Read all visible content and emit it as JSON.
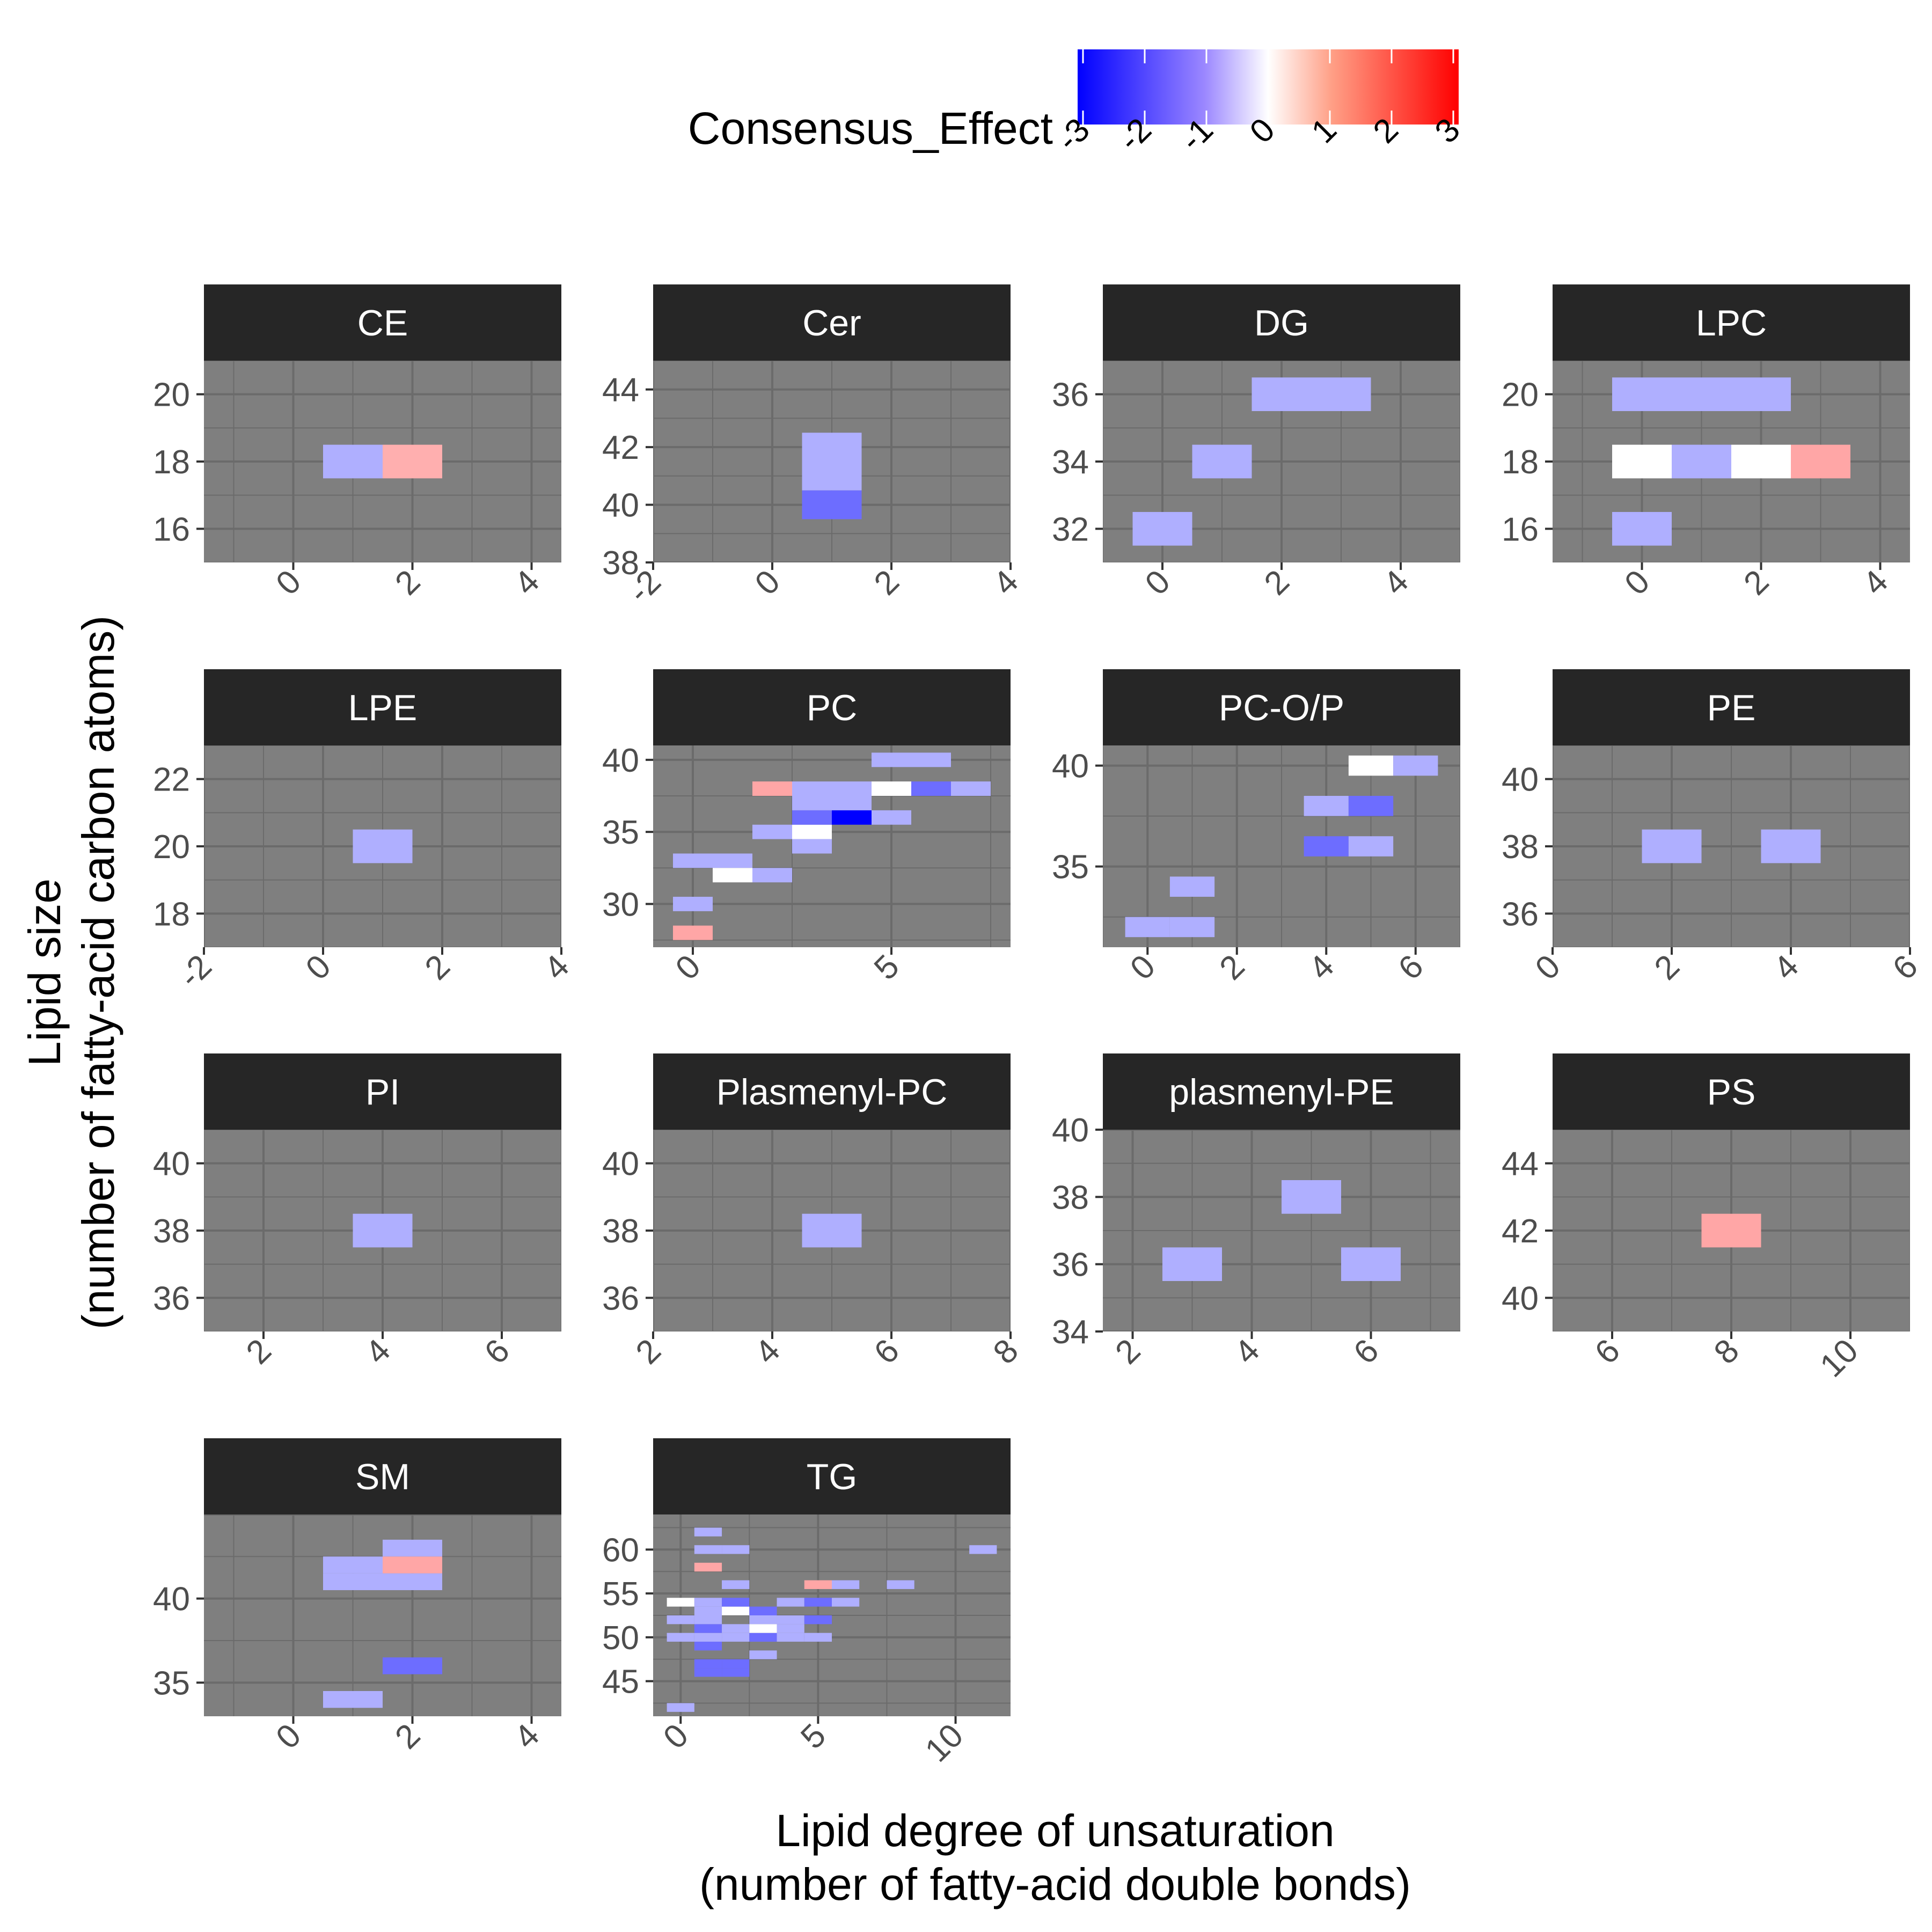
{
  "figure": {
    "xlabel_line1": "Lipid degree of unsaturation",
    "xlabel_line2": "(number of fatty-acid double bonds)",
    "ylabel_line1": "Lipid size",
    "ylabel_line2": "(number of fatty-acid carbon atoms)"
  },
  "legend": {
    "title": "Consensus_Effect",
    "ticks": [
      -3,
      -2,
      -1,
      0,
      1,
      2,
      3
    ],
    "tick_labels": [
      "-3",
      "-2",
      "-1",
      "0",
      "1",
      "2",
      "3"
    ],
    "colors": {
      "low": "#0000ff",
      "mid": "#ffffff",
      "high": "#ff0000"
    },
    "limits": [
      -3,
      3
    ]
  },
  "colors": {
    "panel_bg": "#7f7f7f",
    "strip_bg": "#262626",
    "strip_text": "#ffffff",
    "grid": "#6b6b6b"
  },
  "chart_data": [
    {
      "type": "heatmap",
      "facet": "CE",
      "xlim": [
        -1.5,
        4.5
      ],
      "ylim": [
        15,
        21
      ],
      "xticks": [
        0,
        2,
        4
      ],
      "xtick_labels": [
        "0",
        "2",
        "4"
      ],
      "yticks": [
        16,
        18,
        20
      ],
      "ytick_labels": [
        "16",
        "18",
        "20"
      ],
      "cells": [
        {
          "x": 1,
          "y": 18,
          "v": -0.7
        },
        {
          "x": 2,
          "y": 18,
          "v": 0.7
        }
      ]
    },
    {
      "type": "heatmap",
      "facet": "Cer",
      "xlim": [
        -2,
        4
      ],
      "ylim": [
        38,
        45
      ],
      "xticks": [
        -2,
        0,
        2,
        4
      ],
      "xtick_labels": [
        "-2",
        "0",
        "2",
        "4"
      ],
      "yticks": [
        38,
        40,
        42,
        44
      ],
      "ytick_labels": [
        "38",
        "40",
        "42",
        "44"
      ],
      "cells": [
        {
          "x": 1,
          "y": 40,
          "v": -1.5
        },
        {
          "x": 1,
          "y": 41,
          "v": -0.7
        },
        {
          "x": 1,
          "y": 42,
          "v": -0.7
        }
      ]
    },
    {
      "type": "heatmap",
      "facet": "DG",
      "xlim": [
        -1,
        5
      ],
      "ylim": [
        31,
        37
      ],
      "xticks": [
        0,
        2,
        4
      ],
      "xtick_labels": [
        "0",
        "2",
        "4"
      ],
      "yticks": [
        32,
        34,
        36
      ],
      "ytick_labels": [
        "32",
        "34",
        "36"
      ],
      "cells": [
        {
          "x": 0,
          "y": 32,
          "v": -0.7
        },
        {
          "x": 1,
          "y": 34,
          "v": -0.7
        },
        {
          "x": 2,
          "y": 36,
          "v": -0.7
        },
        {
          "x": 3,
          "y": 36,
          "v": -0.7
        }
      ]
    },
    {
      "type": "heatmap",
      "facet": "LPC",
      "xlim": [
        -1.5,
        4.5
      ],
      "ylim": [
        15,
        21
      ],
      "xticks": [
        0,
        2,
        4
      ],
      "xtick_labels": [
        "0",
        "2",
        "4"
      ],
      "yticks": [
        16,
        18,
        20
      ],
      "ytick_labels": [
        "16",
        "18",
        "20"
      ],
      "cells": [
        {
          "x": 0,
          "y": 16,
          "v": -0.7
        },
        {
          "x": 0,
          "y": 18,
          "v": 0
        },
        {
          "x": 1,
          "y": 18,
          "v": -0.7
        },
        {
          "x": 2,
          "y": 18,
          "v": 0
        },
        {
          "x": 3,
          "y": 18,
          "v": 0.8
        },
        {
          "x": 0,
          "y": 20,
          "v": -0.7
        },
        {
          "x": 1,
          "y": 20,
          "v": -0.7
        },
        {
          "x": 2,
          "y": 20,
          "v": -0.7
        }
      ]
    },
    {
      "type": "heatmap",
      "facet": "LPE",
      "xlim": [
        -2,
        4
      ],
      "ylim": [
        17,
        23
      ],
      "xticks": [
        -2,
        0,
        2,
        4
      ],
      "xtick_labels": [
        "-2",
        "0",
        "2",
        "4"
      ],
      "yticks": [
        18,
        20,
        22
      ],
      "ytick_labels": [
        "18",
        "20",
        "22"
      ],
      "cells": [
        {
          "x": 1,
          "y": 20,
          "v": -0.7
        }
      ]
    },
    {
      "type": "heatmap",
      "facet": "PC",
      "xlim": [
        -1,
        8
      ],
      "ylim": [
        27,
        41
      ],
      "xticks": [
        0,
        5
      ],
      "xtick_labels": [
        "0",
        "5"
      ],
      "yticks": [
        30,
        35,
        40
      ],
      "ytick_labels": [
        "30",
        "35",
        "40"
      ],
      "cells": [
        {
          "x": 0,
          "y": 28,
          "v": 0.8
        },
        {
          "x": 0,
          "y": 30,
          "v": -0.7
        },
        {
          "x": 0,
          "y": 33,
          "v": -0.7
        },
        {
          "x": 1,
          "y": 33,
          "v": -0.7
        },
        {
          "x": 1,
          "y": 32,
          "v": 0
        },
        {
          "x": 2,
          "y": 32,
          "v": -0.7
        },
        {
          "x": 2,
          "y": 35,
          "v": -0.7
        },
        {
          "x": 3,
          "y": 35,
          "v": 0
        },
        {
          "x": 3,
          "y": 34,
          "v": -0.7
        },
        {
          "x": 3,
          "y": 36,
          "v": -1.5
        },
        {
          "x": 4,
          "y": 36,
          "v": -3
        },
        {
          "x": 5,
          "y": 36,
          "v": -0.7
        },
        {
          "x": 2,
          "y": 38,
          "v": 0.8
        },
        {
          "x": 3,
          "y": 38,
          "v": -0.7
        },
        {
          "x": 4,
          "y": 38,
          "v": -0.7
        },
        {
          "x": 5,
          "y": 38,
          "v": 0
        },
        {
          "x": 6,
          "y": 38,
          "v": -1.5
        },
        {
          "x": 7,
          "y": 38,
          "v": -0.7
        },
        {
          "x": 3,
          "y": 37,
          "v": -0.7
        },
        {
          "x": 4,
          "y": 37,
          "v": -0.7
        },
        {
          "x": 5,
          "y": 40,
          "v": -0.7
        },
        {
          "x": 6,
          "y": 40,
          "v": -0.7
        }
      ]
    },
    {
      "type": "heatmap",
      "facet": "PC-O/P",
      "xlim": [
        -1,
        7
      ],
      "ylim": [
        31,
        41
      ],
      "xticks": [
        0,
        2,
        4,
        6
      ],
      "xtick_labels": [
        "0",
        "2",
        "4",
        "6"
      ],
      "yticks": [
        35,
        40
      ],
      "ytick_labels": [
        "35",
        "40"
      ],
      "cells": [
        {
          "x": 0,
          "y": 32,
          "v": -0.7
        },
        {
          "x": 1,
          "y": 32,
          "v": -0.7
        },
        {
          "x": 1,
          "y": 34,
          "v": -0.7
        },
        {
          "x": 4,
          "y": 36,
          "v": -1.5
        },
        {
          "x": 5,
          "y": 36,
          "v": -0.7
        },
        {
          "x": 4,
          "y": 38,
          "v": -0.7
        },
        {
          "x": 5,
          "y": 38,
          "v": -1.5
        },
        {
          "x": 5,
          "y": 40,
          "v": 0
        },
        {
          "x": 6,
          "y": 40,
          "v": -0.7
        }
      ]
    },
    {
      "type": "heatmap",
      "facet": "PE",
      "xlim": [
        0,
        6
      ],
      "ylim": [
        35,
        41
      ],
      "xticks": [
        0,
        2,
        4,
        6
      ],
      "xtick_labels": [
        "0",
        "2",
        "4",
        "6"
      ],
      "yticks": [
        36,
        38,
        40
      ],
      "ytick_labels": [
        "36",
        "38",
        "40"
      ],
      "cells": [
        {
          "x": 2,
          "y": 38,
          "v": -0.7
        },
        {
          "x": 4,
          "y": 38,
          "v": -0.7
        }
      ]
    },
    {
      "type": "heatmap",
      "facet": "PI",
      "xlim": [
        1,
        7
      ],
      "ylim": [
        35,
        41
      ],
      "xticks": [
        2,
        4,
        6
      ],
      "xtick_labels": [
        "2",
        "4",
        "6"
      ],
      "yticks": [
        36,
        38,
        40
      ],
      "ytick_labels": [
        "36",
        "38",
        "40"
      ],
      "cells": [
        {
          "x": 4,
          "y": 38,
          "v": -0.7
        }
      ]
    },
    {
      "type": "heatmap",
      "facet": "Plasmenyl-PC",
      "xlim": [
        2,
        8
      ],
      "ylim": [
        35,
        41
      ],
      "xticks": [
        2,
        4,
        6,
        8
      ],
      "xtick_labels": [
        "2",
        "4",
        "6",
        "8"
      ],
      "yticks": [
        36,
        38,
        40
      ],
      "ytick_labels": [
        "36",
        "38",
        "40"
      ],
      "cells": [
        {
          "x": 5,
          "y": 38,
          "v": -0.7
        }
      ]
    },
    {
      "type": "heatmap",
      "facet": "plasmenyl-PE",
      "xlim": [
        1.5,
        7.5
      ],
      "ylim": [
        34,
        40
      ],
      "xticks": [
        2,
        4,
        6
      ],
      "xtick_labels": [
        "2",
        "4",
        "6"
      ],
      "yticks": [
        34,
        36,
        38,
        40
      ],
      "ytick_labels": [
        "34",
        "36",
        "38",
        "40"
      ],
      "cells": [
        {
          "x": 3,
          "y": 36,
          "v": -0.7
        },
        {
          "x": 5,
          "y": 38,
          "v": -0.7
        },
        {
          "x": 6,
          "y": 36,
          "v": -0.7
        }
      ]
    },
    {
      "type": "heatmap",
      "facet": "PS",
      "xlim": [
        5,
        11
      ],
      "ylim": [
        39,
        45
      ],
      "xticks": [
        6,
        8,
        10
      ],
      "xtick_labels": [
        "6",
        "8",
        "10"
      ],
      "yticks": [
        40,
        42,
        44
      ],
      "ytick_labels": [
        "40",
        "42",
        "44"
      ],
      "cells": [
        {
          "x": 8,
          "y": 42,
          "v": 0.8
        }
      ]
    },
    {
      "type": "heatmap",
      "facet": "SM",
      "xlim": [
        -1.5,
        4.5
      ],
      "ylim": [
        33,
        45
      ],
      "xticks": [
        0,
        2,
        4
      ],
      "xtick_labels": [
        "0",
        "2",
        "4"
      ],
      "yticks": [
        35,
        40
      ],
      "ytick_labels": [
        "35",
        "40"
      ],
      "cells": [
        {
          "x": 1,
          "y": 34,
          "v": -0.7
        },
        {
          "x": 2,
          "y": 36,
          "v": -1.5
        },
        {
          "x": 1,
          "y": 41,
          "v": -0.7
        },
        {
          "x": 2,
          "y": 41,
          "v": -0.7
        },
        {
          "x": 1,
          "y": 42,
          "v": -0.7
        },
        {
          "x": 2,
          "y": 42,
          "v": 0.8
        },
        {
          "x": 2,
          "y": 43,
          "v": -0.7
        }
      ]
    },
    {
      "type": "heatmap",
      "facet": "TG",
      "xlim": [
        -1,
        12
      ],
      "ylim": [
        41,
        64
      ],
      "xticks": [
        0,
        5,
        10
      ],
      "xtick_labels": [
        "0",
        "5",
        "10"
      ],
      "yticks": [
        45,
        50,
        55,
        60
      ],
      "ytick_labels": [
        "45",
        "50",
        "55",
        "60"
      ],
      "cells": [
        {
          "x": 0,
          "y": 42,
          "v": -0.7
        },
        {
          "x": 1,
          "y": 46,
          "v": -1.5
        },
        {
          "x": 2,
          "y": 46,
          "v": -1.5
        },
        {
          "x": 1,
          "y": 47,
          "v": -1.5
        },
        {
          "x": 2,
          "y": 47,
          "v": -1.5
        },
        {
          "x": 3,
          "y": 48,
          "v": -0.7
        },
        {
          "x": 1,
          "y": 49,
          "v": -1.5
        },
        {
          "x": 0,
          "y": 50,
          "v": -0.7
        },
        {
          "x": 1,
          "y": 50,
          "v": -0.7
        },
        {
          "x": 2,
          "y": 50,
          "v": -0.7
        },
        {
          "x": 3,
          "y": 50,
          "v": -1.5
        },
        {
          "x": 4,
          "y": 50,
          "v": -0.7
        },
        {
          "x": 5,
          "y": 50,
          "v": -0.7
        },
        {
          "x": 1,
          "y": 51,
          "v": -1.5
        },
        {
          "x": 2,
          "y": 51,
          "v": -0.7
        },
        {
          "x": 3,
          "y": 51,
          "v": 0
        },
        {
          "x": 4,
          "y": 51,
          "v": -0.7
        },
        {
          "x": 0,
          "y": 52,
          "v": -0.7
        },
        {
          "x": 1,
          "y": 52,
          "v": -0.7
        },
        {
          "x": 3,
          "y": 52,
          "v": -0.7
        },
        {
          "x": 4,
          "y": 52,
          "v": -0.7
        },
        {
          "x": 5,
          "y": 52,
          "v": -1.5
        },
        {
          "x": 1,
          "y": 53,
          "v": -0.7
        },
        {
          "x": 2,
          "y": 53,
          "v": 0
        },
        {
          "x": 3,
          "y": 53,
          "v": -1.5
        },
        {
          "x": 0,
          "y": 54,
          "v": 0
        },
        {
          "x": 1,
          "y": 54,
          "v": -0.7
        },
        {
          "x": 2,
          "y": 54,
          "v": -1.5
        },
        {
          "x": 4,
          "y": 54,
          "v": -0.7
        },
        {
          "x": 5,
          "y": 54,
          "v": -1.5
        },
        {
          "x": 6,
          "y": 54,
          "v": -0.7
        },
        {
          "x": 2,
          "y": 56,
          "v": -0.7
        },
        {
          "x": 5,
          "y": 56,
          "v": 0.8
        },
        {
          "x": 6,
          "y": 56,
          "v": -0.7
        },
        {
          "x": 8,
          "y": 56,
          "v": -0.7
        },
        {
          "x": 1,
          "y": 58,
          "v": 0.8
        },
        {
          "x": 1,
          "y": 60,
          "v": -0.7
        },
        {
          "x": 2,
          "y": 60,
          "v": -0.7
        },
        {
          "x": 11,
          "y": 60,
          "v": -0.7
        },
        {
          "x": 1,
          "y": 62,
          "v": -0.7
        }
      ]
    }
  ]
}
